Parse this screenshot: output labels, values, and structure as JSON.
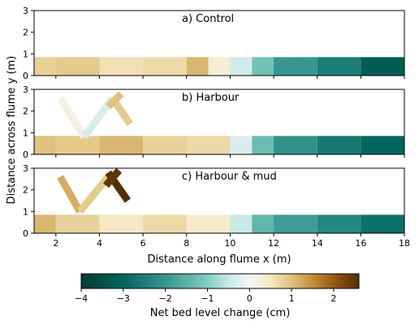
{
  "chart_data": {
    "type": "heatmap",
    "shared_xlabel": "Distance along flume x (m)",
    "shared_ylabel": "Distance across flume y (m)",
    "xlim": [
      1,
      18
    ],
    "ylim": [
      0,
      3
    ],
    "x_ticks": [
      2,
      4,
      6,
      8,
      10,
      12,
      14,
      16,
      18
    ],
    "y_ticks": [
      0,
      1,
      2,
      3
    ],
    "panels": [
      {
        "title": "a) Control",
        "channel_y": [
          0,
          0.85
        ],
        "segments": [
          {
            "x": [
              1,
              2
            ],
            "value": 0.8
          },
          {
            "x": [
              2,
              4
            ],
            "value": 0.9
          },
          {
            "x": [
              4,
              6
            ],
            "value": 0.6
          },
          {
            "x": [
              6,
              8
            ],
            "value": 0.7
          },
          {
            "x": [
              8,
              9
            ],
            "value": 1.1
          },
          {
            "x": [
              9,
              10
            ],
            "value": 0.3
          },
          {
            "x": [
              10,
              11
            ],
            "value": -0.4
          },
          {
            "x": [
              11,
              12
            ],
            "value": -1.2
          },
          {
            "x": [
              12,
              14
            ],
            "value": -2.0
          },
          {
            "x": [
              14,
              16
            ],
            "value": -2.5
          },
          {
            "x": [
              16,
              18
            ],
            "value": -3.2
          }
        ],
        "structures": []
      },
      {
        "title": "b) Harbour",
        "channel_y": [
          0,
          0.85
        ],
        "segments": [
          {
            "x": [
              1,
              2
            ],
            "value": 1.0
          },
          {
            "x": [
              2,
              4
            ],
            "value": 0.9
          },
          {
            "x": [
              4,
              6
            ],
            "value": 1.1
          },
          {
            "x": [
              6,
              8
            ],
            "value": 0.8
          },
          {
            "x": [
              8,
              10
            ],
            "value": 0.7
          },
          {
            "x": [
              10,
              11
            ],
            "value": -0.3
          },
          {
            "x": [
              11,
              12
            ],
            "value": -1.3
          },
          {
            "x": [
              12,
              14
            ],
            "value": -2.1
          },
          {
            "x": [
              14,
              16
            ],
            "value": -2.6
          },
          {
            "x": [
              16,
              18
            ],
            "value": -3.0
          }
        ],
        "structures": [
          {
            "x": [
              2.2,
              3.3
            ],
            "y": [
              2.6,
              0.8
            ],
            "value": 0.2
          },
          {
            "x": [
              3.3,
              4.6
            ],
            "y": [
              0.8,
              2.6
            ],
            "value": -0.3
          },
          {
            "x": [
              4.6,
              5.4
            ],
            "y": [
              2.6,
              1.4
            ],
            "value": 0.9
          },
          {
            "x": [
              4.4,
              5.0
            ],
            "y": [
              2.2,
              2.8
            ],
            "value": 1.0
          }
        ]
      },
      {
        "title": "c) Harbour & mud",
        "channel_y": [
          0,
          0.85
        ],
        "segments": [
          {
            "x": [
              1,
              2
            ],
            "value": 1.1
          },
          {
            "x": [
              2,
              4
            ],
            "value": 0.8
          },
          {
            "x": [
              4,
              6
            ],
            "value": 0.5
          },
          {
            "x": [
              6,
              8
            ],
            "value": 0.7
          },
          {
            "x": [
              8,
              10
            ],
            "value": 0.4
          },
          {
            "x": [
              10,
              11
            ],
            "value": -0.5
          },
          {
            "x": [
              11,
              12
            ],
            "value": -1.4
          },
          {
            "x": [
              12,
              14
            ],
            "value": -1.9
          },
          {
            "x": [
              14,
              16
            ],
            "value": -2.3
          },
          {
            "x": [
              16,
              18
            ],
            "value": -2.8
          }
        ],
        "structures": [
          {
            "x": [
              2.2,
              3.1
            ],
            "y": [
              2.6,
              1.0
            ],
            "value": 1.2
          },
          {
            "x": [
              3.1,
              4.4
            ],
            "y": [
              1.0,
              2.6
            ],
            "value": 0.9
          },
          {
            "x": [
              4.4,
              5.3
            ],
            "y": [
              2.8,
              1.5
            ],
            "value": 2.6
          },
          {
            "x": [
              4.3,
              4.9
            ],
            "y": [
              2.2,
              2.9
            ],
            "value": 2.5
          }
        ]
      }
    ],
    "colorbar": {
      "label": "Net bed level change (cm)",
      "range": [
        -4,
        2.6
      ],
      "ticks": [
        -4,
        -3,
        -2,
        -1,
        0,
        1,
        2
      ],
      "colormap": "BrBG_reversed",
      "stops": [
        {
          "value": -4,
          "color": "#003c30"
        },
        {
          "value": -3,
          "color": "#01665e"
        },
        {
          "value": -2,
          "color": "#35978f"
        },
        {
          "value": -1,
          "color": "#80cdc1"
        },
        {
          "value": -0.5,
          "color": "#c7eae5"
        },
        {
          "value": 0,
          "color": "#f5f5f5"
        },
        {
          "value": 0.5,
          "color": "#f6e8c3"
        },
        {
          "value": 1,
          "color": "#dfc27d"
        },
        {
          "value": 1.6,
          "color": "#bf812d"
        },
        {
          "value": 2.1,
          "color": "#8c510a"
        },
        {
          "value": 2.6,
          "color": "#543005"
        }
      ]
    }
  }
}
